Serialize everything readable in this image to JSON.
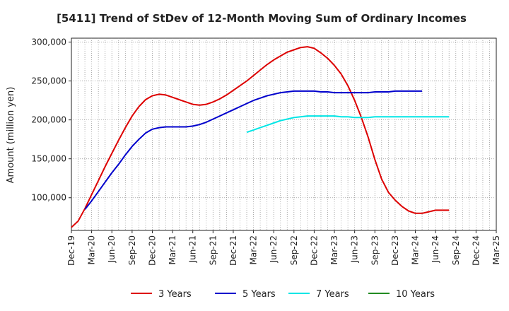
{
  "chart_data": {
    "type": "line",
    "title": "[5411]  Trend of StDev of 12-Month Moving Sum of Ordinary Incomes",
    "xlabel": "",
    "ylabel": "Amount (million yen)",
    "ylim": [
      58000,
      305000
    ],
    "yticks": [
      100000,
      150000,
      200000,
      250000,
      300000
    ],
    "ytick_labels": [
      "100,000",
      "150,000",
      "200,000",
      "250,000",
      "300,000"
    ],
    "xtick_labels": [
      "Dec-19",
      "Mar-20",
      "Jun-20",
      "Sep-20",
      "Dec-20",
      "Mar-21",
      "Jun-21",
      "Sep-21",
      "Dec-21",
      "Mar-22",
      "Jun-22",
      "Sep-22",
      "Dec-22",
      "Mar-23",
      "Jun-23",
      "Sep-23",
      "Dec-23",
      "Mar-24",
      "Jun-24",
      "Sep-24",
      "Dec-24",
      "Mar-25"
    ],
    "x_start": "Dec-19",
    "grid": true,
    "legend_position": "bottom",
    "series": [
      {
        "name": "3 Years",
        "color": "#dd0000",
        "start_index": 0,
        "values": [
          62000,
          70000,
          86000,
          104000,
          122000,
          140000,
          157000,
          174000,
          190000,
          205000,
          217000,
          226000,
          231000,
          233000,
          232000,
          229000,
          226000,
          223000,
          220000,
          219000,
          220000,
          223000,
          227000,
          232000,
          238000,
          244000,
          250000,
          257000,
          264000,
          271000,
          277000,
          282000,
          287000,
          290000,
          293000,
          294000,
          292000,
          286000,
          279000,
          270000,
          259000,
          244000,
          225000,
          203000,
          178000,
          149000,
          124000,
          107000,
          97000,
          89000,
          83000,
          80000,
          80000,
          82000,
          84000,
          84000,
          84000
        ]
      },
      {
        "name": "5 Years",
        "color": "#0000cc",
        "start_index": 2,
        "values": [
          85000,
          96000,
          108000,
          120000,
          132000,
          143000,
          155000,
          166000,
          175000,
          183000,
          188000,
          190000,
          191000,
          191000,
          191000,
          191000,
          192000,
          194000,
          197000,
          201000,
          205000,
          209000,
          213000,
          217000,
          221000,
          225000,
          228000,
          231000,
          233000,
          235000,
          236000,
          237000,
          237000,
          237000,
          237000,
          236000,
          236000,
          235000,
          235000,
          235000,
          235000,
          235000,
          235000,
          236000,
          236000,
          236000,
          237000,
          237000,
          237000,
          237000,
          237000
        ]
      },
      {
        "name": "7 Years",
        "color": "#00e5e5",
        "start_index": 26,
        "values": [
          184000,
          187000,
          190000,
          193000,
          196000,
          199000,
          201000,
          203000,
          204000,
          205000,
          205000,
          205000,
          205000,
          205000,
          204000,
          204000,
          203000,
          203000,
          203000,
          204000,
          204000,
          204000,
          204000,
          204000,
          204000,
          204000,
          204000,
          204000,
          204000,
          204000,
          204000
        ]
      },
      {
        "name": "10 Years",
        "color": "#228b22",
        "start_index": 0,
        "values": []
      }
    ]
  }
}
